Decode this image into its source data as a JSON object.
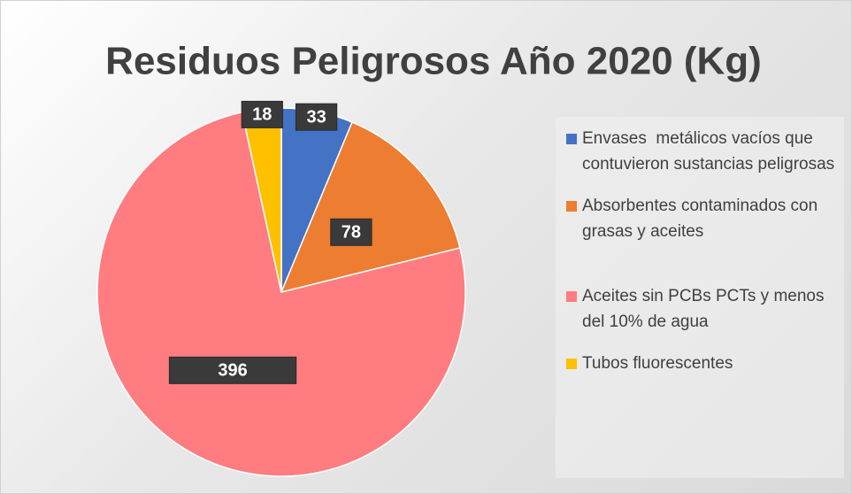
{
  "chart_data": {
    "type": "pie",
    "title": "Residuos Peligrosos Año 2020 (Kg)",
    "categories": [
      "Envases  metálicos vacíos que contuvieron sustancias peligrosas",
      "Absorbentes contaminados con grasas y aceites",
      "Aceites sin PCBs PCTs y menos del 10% de agua",
      "Tubos fluorescentes"
    ],
    "values": [
      33,
      78,
      396,
      18
    ],
    "colors": [
      "#4472c4",
      "#ed7d31",
      "#ff7c80",
      "#ffc000"
    ],
    "legend": "right"
  }
}
